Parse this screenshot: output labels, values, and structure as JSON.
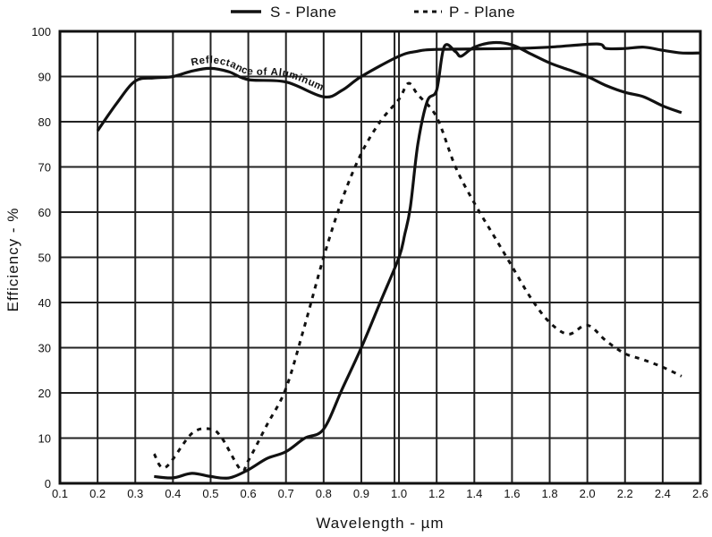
{
  "chart_data": {
    "type": "line",
    "title": "",
    "xlabel": "Wavelength - µm",
    "ylabel": "Efficiency - %",
    "x_ticks": [
      "0.1",
      "0.2",
      "0.3",
      "0.4",
      "0.5",
      "0.6",
      "0.7",
      "0.8",
      "0.9",
      "1.0",
      "1.2",
      "1.4",
      "1.6",
      "1.8",
      "2.0",
      "2.2",
      "2.4",
      "2.6"
    ],
    "y_ticks": [
      "0",
      "10",
      "20",
      "30",
      "40",
      "50",
      "60",
      "70",
      "80",
      "90",
      "100"
    ],
    "xlim": [
      0.1,
      2.6
    ],
    "ylim": [
      0,
      100
    ],
    "x_scale_note": "0.1 steps to 1.0, then 0.2 steps to 2.6 (equal spacing)",
    "grid": true,
    "legend_position": "top",
    "annotation": "Reflectance of Aluminum",
    "series": [
      {
        "name": "Reflectance of Aluminum",
        "style": "solid",
        "in_legend": false,
        "x": [
          0.2,
          0.25,
          0.3,
          0.35,
          0.4,
          0.45,
          0.5,
          0.55,
          0.6,
          0.7,
          0.8,
          0.85,
          0.9,
          1.0,
          1.1,
          1.2,
          1.6,
          1.8,
          2.05,
          2.1,
          2.2,
          2.3,
          2.4,
          2.5,
          2.6
        ],
        "y": [
          78,
          84,
          89,
          89.7,
          90,
          91.2,
          91.8,
          91,
          89.3,
          88.8,
          85.5,
          87,
          90,
          94.5,
          95.6,
          96,
          96.2,
          96.5,
          97.2,
          96.2,
          96.2,
          96.5,
          95.8,
          95.2,
          95.2
        ]
      },
      {
        "name": "S - Plane",
        "style": "solid",
        "in_legend": true,
        "x": [
          0.35,
          0.4,
          0.45,
          0.5,
          0.55,
          0.6,
          0.65,
          0.7,
          0.75,
          0.8,
          0.85,
          0.9,
          0.95,
          1.0,
          1.03,
          1.06,
          1.1,
          1.15,
          1.2,
          1.24,
          1.3,
          1.33,
          1.4,
          1.5,
          1.6,
          1.7,
          1.8,
          1.9,
          2.0,
          2.1,
          2.2,
          2.3,
          2.4,
          2.5
        ],
        "y": [
          1.5,
          1.2,
          2.2,
          1.5,
          1.2,
          3,
          5.5,
          7,
          10,
          12,
          21,
          30,
          40,
          50,
          55,
          61,
          75,
          84.5,
          87,
          96.6,
          95.5,
          94.5,
          96.5,
          97.5,
          97,
          95,
          93,
          91.5,
          90,
          88,
          86.5,
          85.5,
          83.5,
          82
        ]
      },
      {
        "name": "P - Plane",
        "style": "dashed",
        "in_legend": true,
        "x": [
          0.35,
          0.38,
          0.45,
          0.5,
          0.53,
          0.58,
          0.6,
          0.65,
          0.7,
          0.75,
          0.8,
          0.85,
          0.9,
          0.95,
          1.0,
          1.05,
          1.1,
          1.2,
          1.3,
          1.4,
          1.5,
          1.6,
          1.7,
          1.8,
          1.9,
          2.0,
          2.1,
          2.2,
          2.3,
          2.4,
          2.5
        ],
        "y": [
          6.5,
          3.5,
          11,
          12,
          10,
          3,
          5,
          13,
          21,
          35,
          50,
          63,
          73,
          80,
          85,
          88.5,
          86,
          81,
          70,
          62,
          55,
          48,
          41,
          35.6,
          33,
          35,
          31.5,
          28.7,
          27.3,
          25.7,
          23.7
        ]
      }
    ]
  }
}
